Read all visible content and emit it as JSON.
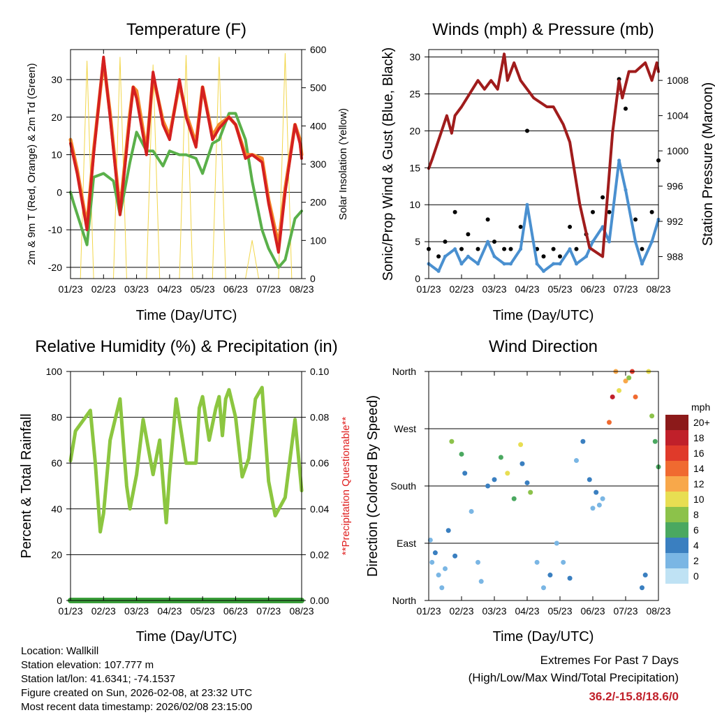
{
  "chart_data": [
    {
      "type": "line",
      "title": "Temperature (F)",
      "xlabel": "Time (Day/UTC)",
      "ylabel": "2m & 9m T (Red, Orange) & 2m Td (Green)",
      "y2label": "Solar Insolation (Yellow)",
      "categories": [
        "01/23",
        "02/23",
        "03/23",
        "04/23",
        "05/23",
        "06/23",
        "07/23",
        "08/23"
      ],
      "ylim": [
        -23,
        38
      ],
      "yticks": [
        -20,
        -10,
        0,
        10,
        20,
        30
      ],
      "y2lim": [
        0,
        600
      ],
      "y2ticks": [
        0,
        100,
        200,
        300,
        400,
        500,
        600
      ],
      "colors": {
        "t2m": "#d42020",
        "t9m": "#f5882a",
        "td": "#5ab04a",
        "solar": "#f2d64a"
      },
      "series": [
        {
          "name": "2m T",
          "x": [
            0,
            0.2,
            0.5,
            0.7,
            1.0,
            1.2,
            1.5,
            1.8,
            1.9,
            2.0,
            2.3,
            2.5,
            2.8,
            3.0,
            3.3,
            3.5,
            3.8,
            4.0,
            4.3,
            4.5,
            4.8,
            5.0,
            5.3,
            5.5,
            5.8,
            6.0,
            6.3,
            6.5,
            6.8,
            6.95,
            7.0
          ],
          "values": [
            13,
            5,
            -10,
            10,
            36,
            20,
            -6,
            20,
            28,
            25,
            10,
            32,
            18,
            14,
            30,
            20,
            12,
            28,
            14,
            17,
            20,
            18,
            9,
            10,
            8,
            -3,
            -16,
            0,
            18,
            13,
            9
          ]
        },
        {
          "name": "9m T",
          "x": [
            0,
            0.2,
            0.5,
            0.7,
            1.0,
            1.2,
            1.5,
            1.8,
            1.9,
            2.0,
            2.3,
            2.5,
            2.8,
            3.0,
            3.3,
            3.5,
            3.8,
            4.0,
            4.3,
            4.5,
            4.8,
            5.0,
            5.3,
            5.5,
            5.8,
            6.0,
            6.3,
            6.5,
            6.8,
            6.95,
            7.0
          ],
          "values": [
            14,
            6,
            -9,
            11,
            35,
            21,
            -5,
            21,
            28,
            27,
            11,
            31,
            19,
            15,
            29,
            21,
            13,
            28,
            15,
            18,
            20,
            18,
            10,
            10,
            9,
            -2,
            -14,
            1,
            18,
            14,
            10
          ]
        },
        {
          "name": "2m Td",
          "x": [
            0,
            0.1,
            0.5,
            0.7,
            1.0,
            1.3,
            1.5,
            1.8,
            2.0,
            2.3,
            2.5,
            2.8,
            3.0,
            3.3,
            3.5,
            3.8,
            4.0,
            4.3,
            4.5,
            4.8,
            5.0,
            5.3,
            5.5,
            5.8,
            6.0,
            6.3,
            6.5,
            6.8,
            7.0
          ],
          "values": [
            0,
            -3,
            -14,
            4,
            5,
            3,
            -6,
            8,
            16,
            11,
            11,
            7,
            11,
            10,
            10,
            9,
            5,
            13,
            14,
            21,
            21,
            14,
            3,
            -10,
            -15,
            -20,
            -18,
            -7,
            -5
          ]
        },
        {
          "name": "Solar Insolation",
          "axis": "y2",
          "x": [
            0.3,
            0.5,
            0.7,
            1.3,
            1.5,
            1.7,
            2.3,
            2.5,
            2.7,
            3.3,
            3.5,
            3.7,
            4.3,
            4.5,
            4.7,
            5.3,
            5.5,
            5.7,
            6.3,
            6.5,
            6.7
          ],
          "values": [
            0,
            570,
            0,
            0,
            580,
            0,
            0,
            560,
            0,
            0,
            585,
            0,
            0,
            580,
            0,
            0,
            100,
            0,
            0,
            590,
            0
          ]
        }
      ]
    },
    {
      "type": "scatter",
      "title": "Winds (mph) & Pressure (mb)",
      "xlabel": "Time (Day/UTC)",
      "ylabel": "Sonic/Prop Wind & Gust (Blue, Black)",
      "y2label": "Station Pressure (Maroon)",
      "categories": [
        "01/23",
        "02/23",
        "03/23",
        "04/23",
        "05/23",
        "06/23",
        "07/23",
        "08/23"
      ],
      "ylim": [
        0,
        31
      ],
      "yticks": [
        0,
        5,
        10,
        15,
        20,
        25,
        30
      ],
      "y2lim": [
        985.5,
        1011.5
      ],
      "y2ticks": [
        988,
        992,
        996,
        1000,
        1004,
        1008
      ],
      "colors": {
        "wind": "#4a90d0",
        "gust": "#000000",
        "pressure": "#a01c1c"
      },
      "series": [
        {
          "name": "Wind",
          "x": [
            0,
            0.3,
            0.5,
            0.8,
            1.0,
            1.2,
            1.5,
            1.8,
            2.0,
            2.3,
            2.5,
            2.8,
            3.0,
            3.3,
            3.5,
            3.8,
            4.0,
            4.3,
            4.5,
            4.8,
            5.0,
            5.3,
            5.5,
            5.8,
            6.0,
            6.3,
            6.5,
            6.8,
            7.0
          ],
          "values": [
            2,
            1,
            3,
            4,
            2,
            3,
            2,
            5,
            3,
            2,
            2,
            4,
            10,
            2,
            1,
            2,
            2,
            4,
            2,
            3,
            5,
            7,
            5,
            16,
            12,
            5,
            2,
            5,
            8
          ]
        },
        {
          "name": "Gust",
          "x": [
            0,
            0.3,
            0.5,
            0.8,
            1.0,
            1.2,
            1.5,
            1.8,
            2.0,
            2.3,
            2.5,
            2.8,
            3.0,
            3.3,
            3.5,
            3.8,
            4.0,
            4.3,
            4.5,
            4.8,
            5.0,
            5.3,
            5.5,
            5.8,
            6.0,
            6.3,
            6.5,
            6.8,
            7.0
          ],
          "values": [
            4,
            3,
            5,
            9,
            4,
            6,
            4,
            8,
            5,
            4,
            4,
            7,
            20,
            4,
            3,
            4,
            3,
            7,
            4,
            6,
            9,
            11,
            9,
            27,
            23,
            8,
            4,
            9,
            16
          ]
        },
        {
          "name": "Station Pressure",
          "axis": "y2",
          "x": [
            0,
            0.1,
            0.55,
            0.7,
            0.8,
            1.0,
            1.5,
            1.7,
            1.9,
            2.1,
            2.3,
            2.4,
            2.6,
            2.8,
            3.0,
            3.2,
            3.6,
            3.8,
            4.1,
            4.3,
            4.6,
            4.9,
            5.3,
            5.6,
            5.8,
            5.9,
            6.1,
            6.3,
            6.6,
            6.8,
            6.95,
            7.0
          ],
          "values": [
            998,
            999,
            1004,
            1002,
            1004,
            1005,
            1008,
            1007,
            1008,
            1007,
            1011,
            1008,
            1010,
            1008,
            1007,
            1006,
            1005,
            1005,
            1003,
            1001,
            994,
            989,
            988,
            1002,
            1008,
            1006,
            1009,
            1009,
            1010,
            1008,
            1010,
            1009
          ]
        }
      ]
    },
    {
      "type": "line",
      "title": "Relative Humidity (%) & Precipitation (in)",
      "xlabel": "Time (Day/UTC)",
      "ylabel": "Percent & Total Rainfall",
      "y2label": "**Precipitation Questionable**",
      "categories": [
        "01/23",
        "02/23",
        "03/23",
        "04/23",
        "05/23",
        "06/23",
        "07/23",
        "08/23"
      ],
      "ylim": [
        0,
        100
      ],
      "yticks": [
        0,
        20,
        40,
        60,
        80,
        100
      ],
      "y2lim": [
        0,
        0.1
      ],
      "y2ticks": [
        "0.00",
        "0.02",
        "0.04",
        "0.06",
        "0.08",
        "0.10"
      ],
      "colors": {
        "rh": "#8cc640",
        "precip": "#3a9e3a",
        "note": "#e02020"
      },
      "series": [
        {
          "name": "Relative Humidity",
          "x": [
            0,
            0.15,
            0.6,
            0.75,
            0.9,
            1.0,
            1.2,
            1.5,
            1.7,
            1.8,
            2.0,
            2.2,
            2.5,
            2.7,
            2.9,
            3.0,
            3.2,
            3.5,
            3.8,
            3.9,
            4.0,
            4.2,
            4.4,
            4.5,
            4.6,
            4.7,
            4.8,
            5.0,
            5.2,
            5.4,
            5.6,
            5.8,
            5.9,
            6.0,
            6.2,
            6.5,
            6.8,
            7.0
          ],
          "values": [
            61,
            74,
            83,
            60,
            30,
            38,
            70,
            88,
            50,
            40,
            55,
            79,
            55,
            70,
            34,
            55,
            88,
            60,
            60,
            84,
            89,
            70,
            84,
            89,
            72,
            88,
            92,
            80,
            54,
            62,
            88,
            93,
            72,
            52,
            37,
            45,
            79,
            48
          ]
        },
        {
          "name": "Total Precipitation",
          "axis": "y2",
          "x": [
            0,
            7
          ],
          "values": [
            0,
            0
          ]
        }
      ]
    },
    {
      "type": "scatter",
      "title": "Wind Direction",
      "xlabel": "Time (Day/UTC)",
      "ylabel": "Direction (Colored By Speed)",
      "categories": [
        "01/23",
        "02/23",
        "03/23",
        "04/23",
        "05/23",
        "06/23",
        "07/23",
        "08/23"
      ],
      "ylim": [
        0,
        360
      ],
      "yticks": [
        "North",
        "East",
        "South",
        "West",
        "North"
      ],
      "colorbar": {
        "title": "mph",
        "labels": [
          "20+",
          "18",
          "16",
          "14",
          "12",
          "10",
          "8",
          "6",
          "4",
          "2",
          "0"
        ],
        "colors": [
          "#8c1a1a",
          "#c0202a",
          "#e03a2a",
          "#f06a30",
          "#f8a84a",
          "#e8de52",
          "#8cc24a",
          "#4aa860",
          "#3a7fc0",
          "#7ab6e4",
          "#bfe2f4"
        ]
      },
      "series": [
        {
          "name": "Direction",
          "x": [
            0.05,
            0.1,
            0.2,
            0.3,
            0.4,
            0.5,
            0.6,
            0.7,
            0.8,
            1.0,
            1.1,
            1.3,
            1.5,
            1.6,
            1.8,
            2.0,
            2.2,
            2.4,
            2.6,
            2.8,
            2.85,
            3.0,
            3.1,
            3.3,
            3.5,
            3.7,
            3.9,
            4.1,
            4.3,
            4.5,
            4.7,
            4.9,
            5.0,
            5.1,
            5.2,
            5.3,
            5.5,
            5.6,
            5.7,
            5.8,
            6.0,
            6.1,
            6.2,
            6.3,
            6.5,
            6.6,
            6.7,
            6.8,
            6.9,
            7.0
          ],
          "values": [
            95,
            60,
            75,
            40,
            20,
            50,
            110,
            250,
            70,
            230,
            200,
            140,
            60,
            30,
            180,
            190,
            225,
            200,
            160,
            245,
            215,
            185,
            170,
            60,
            20,
            40,
            90,
            60,
            35,
            220,
            250,
            190,
            145,
            170,
            150,
            160,
            280,
            320,
            360,
            330,
            345,
            350,
            360,
            320,
            20,
            40,
            360,
            290,
            250,
            210
          ],
          "speeds": [
            2,
            1,
            3,
            1,
            2,
            1,
            3,
            8,
            3,
            6,
            4,
            2,
            1,
            1,
            4,
            3,
            5,
            10,
            6,
            9,
            4,
            3,
            7,
            2,
            1,
            3,
            1,
            2,
            3,
            2,
            4,
            3,
            1,
            4,
            2,
            1,
            14,
            18,
            12,
            10,
            12,
            8,
            16,
            14,
            3,
            4,
            10,
            8,
            5,
            6
          ]
        }
      ]
    }
  ],
  "info": {
    "location": "Location: Wallkill",
    "elevation": "Station elevation: 107.777 m",
    "latlon": "Station lat/lon: 41.6341; -74.1537",
    "created": "Figure created on Sun, 2026-02-08, at 23:32 UTC",
    "recent": "Most recent data timestamp: 2026/02/08 23:15:00"
  },
  "extremes": {
    "title": "Extremes For Past 7 Days",
    "subtitle": "(High/Low/Max Wind/Total Precipitation)",
    "value": "36.2/-15.8/18.6/0",
    "color": "#c0202a"
  }
}
